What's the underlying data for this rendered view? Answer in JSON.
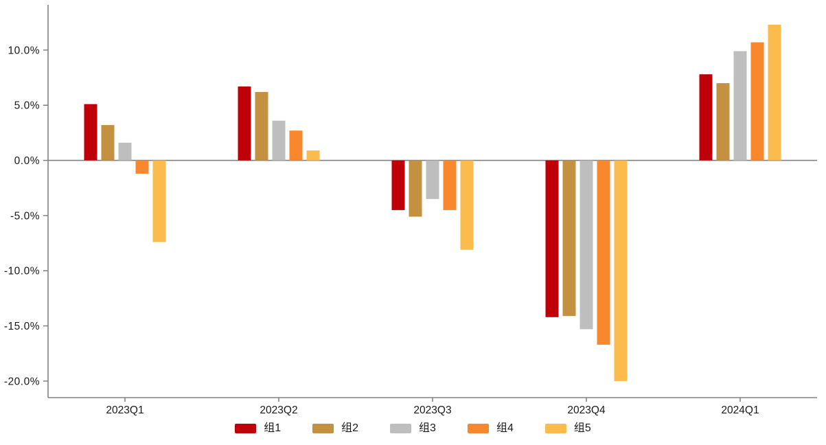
{
  "chart_data": {
    "type": "bar",
    "title": "",
    "xlabel": "",
    "ylabel": "",
    "categories": [
      "2023Q1",
      "2023Q2",
      "2023Q3",
      "2023Q4",
      "2024Q1"
    ],
    "series": [
      {
        "name": "组1",
        "color": "#C00009",
        "values": [
          5.1,
          6.7,
          -4.5,
          -14.2,
          7.8
        ]
      },
      {
        "name": "组2",
        "color": "#C49140",
        "values": [
          3.2,
          6.2,
          -5.1,
          -14.1,
          7.0
        ]
      },
      {
        "name": "组3",
        "color": "#BEBEBE",
        "values": [
          1.6,
          3.6,
          -3.5,
          -15.3,
          9.9
        ]
      },
      {
        "name": "组4",
        "color": "#F8872E",
        "values": [
          -1.2,
          2.7,
          -4.5,
          -16.7,
          10.7
        ]
      },
      {
        "name": "组5",
        "color": "#FBBC4D",
        "values": [
          -7.4,
          0.9,
          -8.1,
          -20.0,
          12.3
        ]
      }
    ],
    "ylim": [
      -21.5,
      14.1
    ],
    "yticks": [
      10,
      5,
      0,
      -5,
      -10,
      -15,
      -20
    ],
    "ytick_labels": [
      "10.0%",
      "5.0%",
      "0.0%",
      "-5.0%",
      "-10.0%",
      "-15.0%",
      "-20.0%"
    ],
    "grid": false,
    "zero_line": true,
    "legend_position": "bottom",
    "axis_color": "#808080",
    "text_color": "#1a1a1a",
    "background": "#ffffff"
  }
}
